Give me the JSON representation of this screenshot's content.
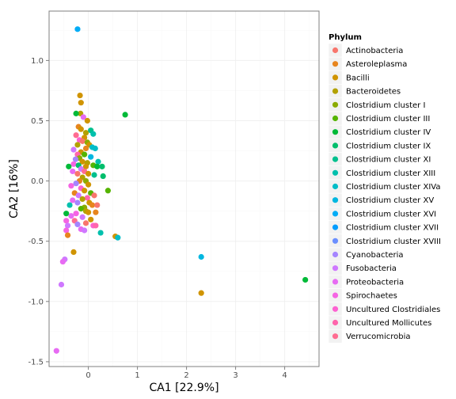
{
  "chart_data": {
    "type": "scatter",
    "xlabel": "CA1   [22.9%]",
    "ylabel": "CA2   [16%]",
    "xlim": [
      -0.8,
      4.7
    ],
    "ylim": [
      -1.54,
      1.41
    ],
    "x_ticks": [
      0,
      1,
      2,
      3,
      4
    ],
    "y_ticks": [
      -1.5,
      -1.0,
      -0.5,
      0.0,
      0.5,
      1.0
    ],
    "y_tick_labels": [
      "-1.5",
      "-1.0",
      "-0.5",
      "0.0",
      "0.5",
      "1.0"
    ],
    "grid": true,
    "legend": {
      "title": "Phylum",
      "position": "right",
      "entries": [
        {
          "name": "Actinobacteria",
          "color": "#F8766D"
        },
        {
          "name": "Asteroleplasma",
          "color": "#E7851E"
        },
        {
          "name": "Bacilli",
          "color": "#D09400"
        },
        {
          "name": "Bacteroidetes",
          "color": "#B2A100"
        },
        {
          "name": "Clostridium cluster I",
          "color": "#8BAB00"
        },
        {
          "name": "Clostridium cluster III",
          "color": "#55B400"
        },
        {
          "name": "Clostridium cluster IV",
          "color": "#00BA38"
        },
        {
          "name": "Clostridium cluster IX",
          "color": "#00BE6C"
        },
        {
          "name": "Clostridium cluster XI",
          "color": "#00C08E"
        },
        {
          "name": "Clostridium cluster XIII",
          "color": "#00C0AD"
        },
        {
          "name": "Clostridium cluster XIVa",
          "color": "#00BDC8"
        },
        {
          "name": "Clostridium cluster XV",
          "color": "#00B7E0"
        },
        {
          "name": "Clostridium cluster XVI",
          "color": "#00ACF6"
        },
        {
          "name": "Clostridium cluster XVII",
          "color": "#009DFF"
        },
        {
          "name": "Clostridium cluster XVIII",
          "color": "#6B8FFF"
        },
        {
          "name": "Cyanobacteria",
          "color": "#A585FF"
        },
        {
          "name": "Fusobacteria",
          "color": "#CF78FF"
        },
        {
          "name": "Proteobacteria",
          "color": "#E76BF3"
        },
        {
          "name": "Spirochaetes",
          "color": "#F564E3"
        },
        {
          "name": "Uncultured Clostridiales",
          "color": "#FD61D1"
        },
        {
          "name": "Uncultured Mollicutes",
          "color": "#FF65AC"
        },
        {
          "name": "Verrucomicrobia",
          "color": "#FF6C91"
        }
      ]
    },
    "points": [
      {
        "x": -0.22,
        "y": 1.26,
        "color": "#00ACF6"
      },
      {
        "x": -0.17,
        "y": 0.71,
        "color": "#D09400"
      },
      {
        "x": -0.15,
        "y": 0.65,
        "color": "#D09400"
      },
      {
        "x": -0.16,
        "y": 0.56,
        "color": "#B2A100"
      },
      {
        "x": -0.25,
        "y": 0.56,
        "color": "#00BA38"
      },
      {
        "x": 0.75,
        "y": 0.55,
        "color": "#00BA38"
      },
      {
        "x": -0.1,
        "y": 0.53,
        "color": "#E76BF3"
      },
      {
        "x": -0.02,
        "y": 0.5,
        "color": "#D09400"
      },
      {
        "x": -0.2,
        "y": 0.45,
        "color": "#E7851E"
      },
      {
        "x": -0.15,
        "y": 0.43,
        "color": "#D09400"
      },
      {
        "x": -0.05,
        "y": 0.4,
        "color": "#B2A100"
      },
      {
        "x": 0.05,
        "y": 0.42,
        "color": "#00C08E"
      },
      {
        "x": 0.1,
        "y": 0.39,
        "color": "#00C0AD"
      },
      {
        "x": -0.25,
        "y": 0.38,
        "color": "#FF6C91"
      },
      {
        "x": -0.08,
        "y": 0.36,
        "color": "#D09400"
      },
      {
        "x": -0.18,
        "y": 0.34,
        "color": "#FD61D1"
      },
      {
        "x": -0.12,
        "y": 0.33,
        "color": "#F8766D"
      },
      {
        "x": -0.02,
        "y": 0.32,
        "color": "#8BAB00"
      },
      {
        "x": 0.02,
        "y": 0.3,
        "color": "#D09400"
      },
      {
        "x": -0.22,
        "y": 0.3,
        "color": "#B2A100"
      },
      {
        "x": 0.08,
        "y": 0.28,
        "color": "#00BDC8"
      },
      {
        "x": 0.14,
        "y": 0.27,
        "color": "#00BDC8"
      },
      {
        "x": -0.05,
        "y": 0.27,
        "color": "#E7851E"
      },
      {
        "x": -0.3,
        "y": 0.26,
        "color": "#CF78FF"
      },
      {
        "x": -0.15,
        "y": 0.24,
        "color": "#D09400"
      },
      {
        "x": -0.22,
        "y": 0.22,
        "color": "#FF65AC"
      },
      {
        "x": -0.08,
        "y": 0.22,
        "color": "#55B400"
      },
      {
        "x": 0.05,
        "y": 0.2,
        "color": "#00B7E0"
      },
      {
        "x": -0.18,
        "y": 0.19,
        "color": "#8BAB00"
      },
      {
        "x": -0.26,
        "y": 0.18,
        "color": "#A585FF"
      },
      {
        "x": -0.12,
        "y": 0.16,
        "color": "#D09400"
      },
      {
        "x": 0.2,
        "y": 0.16,
        "color": "#00C0AD"
      },
      {
        "x": -0.02,
        "y": 0.15,
        "color": "#B2A100"
      },
      {
        "x": -0.3,
        "y": 0.14,
        "color": "#F564E3"
      },
      {
        "x": -0.2,
        "y": 0.13,
        "color": "#00BE6C"
      },
      {
        "x": 0.1,
        "y": 0.13,
        "color": "#55B400"
      },
      {
        "x": 0.18,
        "y": 0.12,
        "color": "#00BA38"
      },
      {
        "x": -0.05,
        "y": 0.12,
        "color": "#D09400"
      },
      {
        "x": 0.28,
        "y": 0.12,
        "color": "#00BE6C"
      },
      {
        "x": -0.4,
        "y": 0.12,
        "color": "#00BA38"
      },
      {
        "x": -0.15,
        "y": 0.1,
        "color": "#CF78FF"
      },
      {
        "x": -0.08,
        "y": 0.08,
        "color": "#FF6C91"
      },
      {
        "x": -0.32,
        "y": 0.08,
        "color": "#E76BF3"
      },
      {
        "x": -0.22,
        "y": 0.06,
        "color": "#F8766D"
      },
      {
        "x": 0.0,
        "y": 0.06,
        "color": "#D09400"
      },
      {
        "x": 0.12,
        "y": 0.05,
        "color": "#00C08E"
      },
      {
        "x": 0.3,
        "y": 0.04,
        "color": "#00BE6C"
      },
      {
        "x": -0.12,
        "y": 0.03,
        "color": "#B2A100"
      },
      {
        "x": -0.18,
        "y": 0.0,
        "color": "#E7851E"
      },
      {
        "x": -0.05,
        "y": 0.0,
        "color": "#8BAB00"
      },
      {
        "x": -0.25,
        "y": -0.02,
        "color": "#A585FF"
      },
      {
        "x": 0.0,
        "y": -0.03,
        "color": "#D09400"
      },
      {
        "x": -0.35,
        "y": -0.04,
        "color": "#F564E3"
      },
      {
        "x": -0.15,
        "y": -0.06,
        "color": "#FD61D1"
      },
      {
        "x": -0.08,
        "y": -0.08,
        "color": "#D09400"
      },
      {
        "x": 0.05,
        "y": -0.1,
        "color": "#55B400"
      },
      {
        "x": -0.28,
        "y": -0.1,
        "color": "#E7851E"
      },
      {
        "x": -0.2,
        "y": -0.12,
        "color": "#CF78FF"
      },
      {
        "x": 0.4,
        "y": -0.08,
        "color": "#55B400"
      },
      {
        "x": -0.02,
        "y": -0.14,
        "color": "#FF65AC"
      },
      {
        "x": 0.12,
        "y": -0.12,
        "color": "#F8766D"
      },
      {
        "x": -0.12,
        "y": -0.15,
        "color": "#B2A100"
      },
      {
        "x": -0.32,
        "y": -0.16,
        "color": "#E76BF3"
      },
      {
        "x": 0.02,
        "y": -0.18,
        "color": "#D09400"
      },
      {
        "x": -0.22,
        "y": -0.18,
        "color": "#A585FF"
      },
      {
        "x": 0.08,
        "y": -0.2,
        "color": "#E7851E"
      },
      {
        "x": -0.08,
        "y": -0.22,
        "color": "#8BAB00"
      },
      {
        "x": -0.38,
        "y": -0.2,
        "color": "#00C0AD"
      },
      {
        "x": 0.18,
        "y": -0.2,
        "color": "#F8766D"
      },
      {
        "x": -0.15,
        "y": -0.23,
        "color": "#55B400"
      },
      {
        "x": -0.05,
        "y": -0.25,
        "color": "#B2A100"
      },
      {
        "x": 0.0,
        "y": -0.26,
        "color": "#D09400"
      },
      {
        "x": -0.25,
        "y": -0.27,
        "color": "#F564E3"
      },
      {
        "x": 0.15,
        "y": -0.26,
        "color": "#E7851E"
      },
      {
        "x": -0.45,
        "y": -0.27,
        "color": "#00BA38"
      },
      {
        "x": -0.35,
        "y": -0.29,
        "color": "#E76BF3"
      },
      {
        "x": -0.12,
        "y": -0.3,
        "color": "#CF78FF"
      },
      {
        "x": -0.28,
        "y": -0.33,
        "color": "#FF6C91"
      },
      {
        "x": 0.05,
        "y": -0.32,
        "color": "#D09400"
      },
      {
        "x": -0.45,
        "y": -0.33,
        "color": "#F564E3"
      },
      {
        "x": -0.05,
        "y": -0.35,
        "color": "#F8766D"
      },
      {
        "x": -0.42,
        "y": -0.37,
        "color": "#CF78FF"
      },
      {
        "x": 0.1,
        "y": -0.37,
        "color": "#FD61D1"
      },
      {
        "x": 0.15,
        "y": -0.37,
        "color": "#FF65AC"
      },
      {
        "x": -0.22,
        "y": -0.36,
        "color": "#A585FF"
      },
      {
        "x": -0.15,
        "y": -0.4,
        "color": "#E76BF3"
      },
      {
        "x": -0.45,
        "y": -0.41,
        "color": "#F564E3"
      },
      {
        "x": -0.08,
        "y": -0.41,
        "color": "#CF78FF"
      },
      {
        "x": 0.25,
        "y": -0.43,
        "color": "#00C0AD"
      },
      {
        "x": -0.42,
        "y": -0.45,
        "color": "#E7851E"
      },
      {
        "x": 0.55,
        "y": -0.46,
        "color": "#D09400"
      },
      {
        "x": 0.6,
        "y": -0.47,
        "color": "#00BDC8"
      },
      {
        "x": -0.3,
        "y": -0.59,
        "color": "#D09400"
      },
      {
        "x": 2.3,
        "y": -0.63,
        "color": "#00B7E0"
      },
      {
        "x": -0.48,
        "y": -0.65,
        "color": "#CF78FF"
      },
      {
        "x": -0.52,
        "y": -0.67,
        "color": "#E76BF3"
      },
      {
        "x": 4.42,
        "y": -0.82,
        "color": "#00BA38"
      },
      {
        "x": -0.55,
        "y": -0.86,
        "color": "#CF78FF"
      },
      {
        "x": 2.3,
        "y": -0.93,
        "color": "#D09400"
      },
      {
        "x": -0.65,
        "y": -1.41,
        "color": "#E76BF3"
      }
    ]
  }
}
